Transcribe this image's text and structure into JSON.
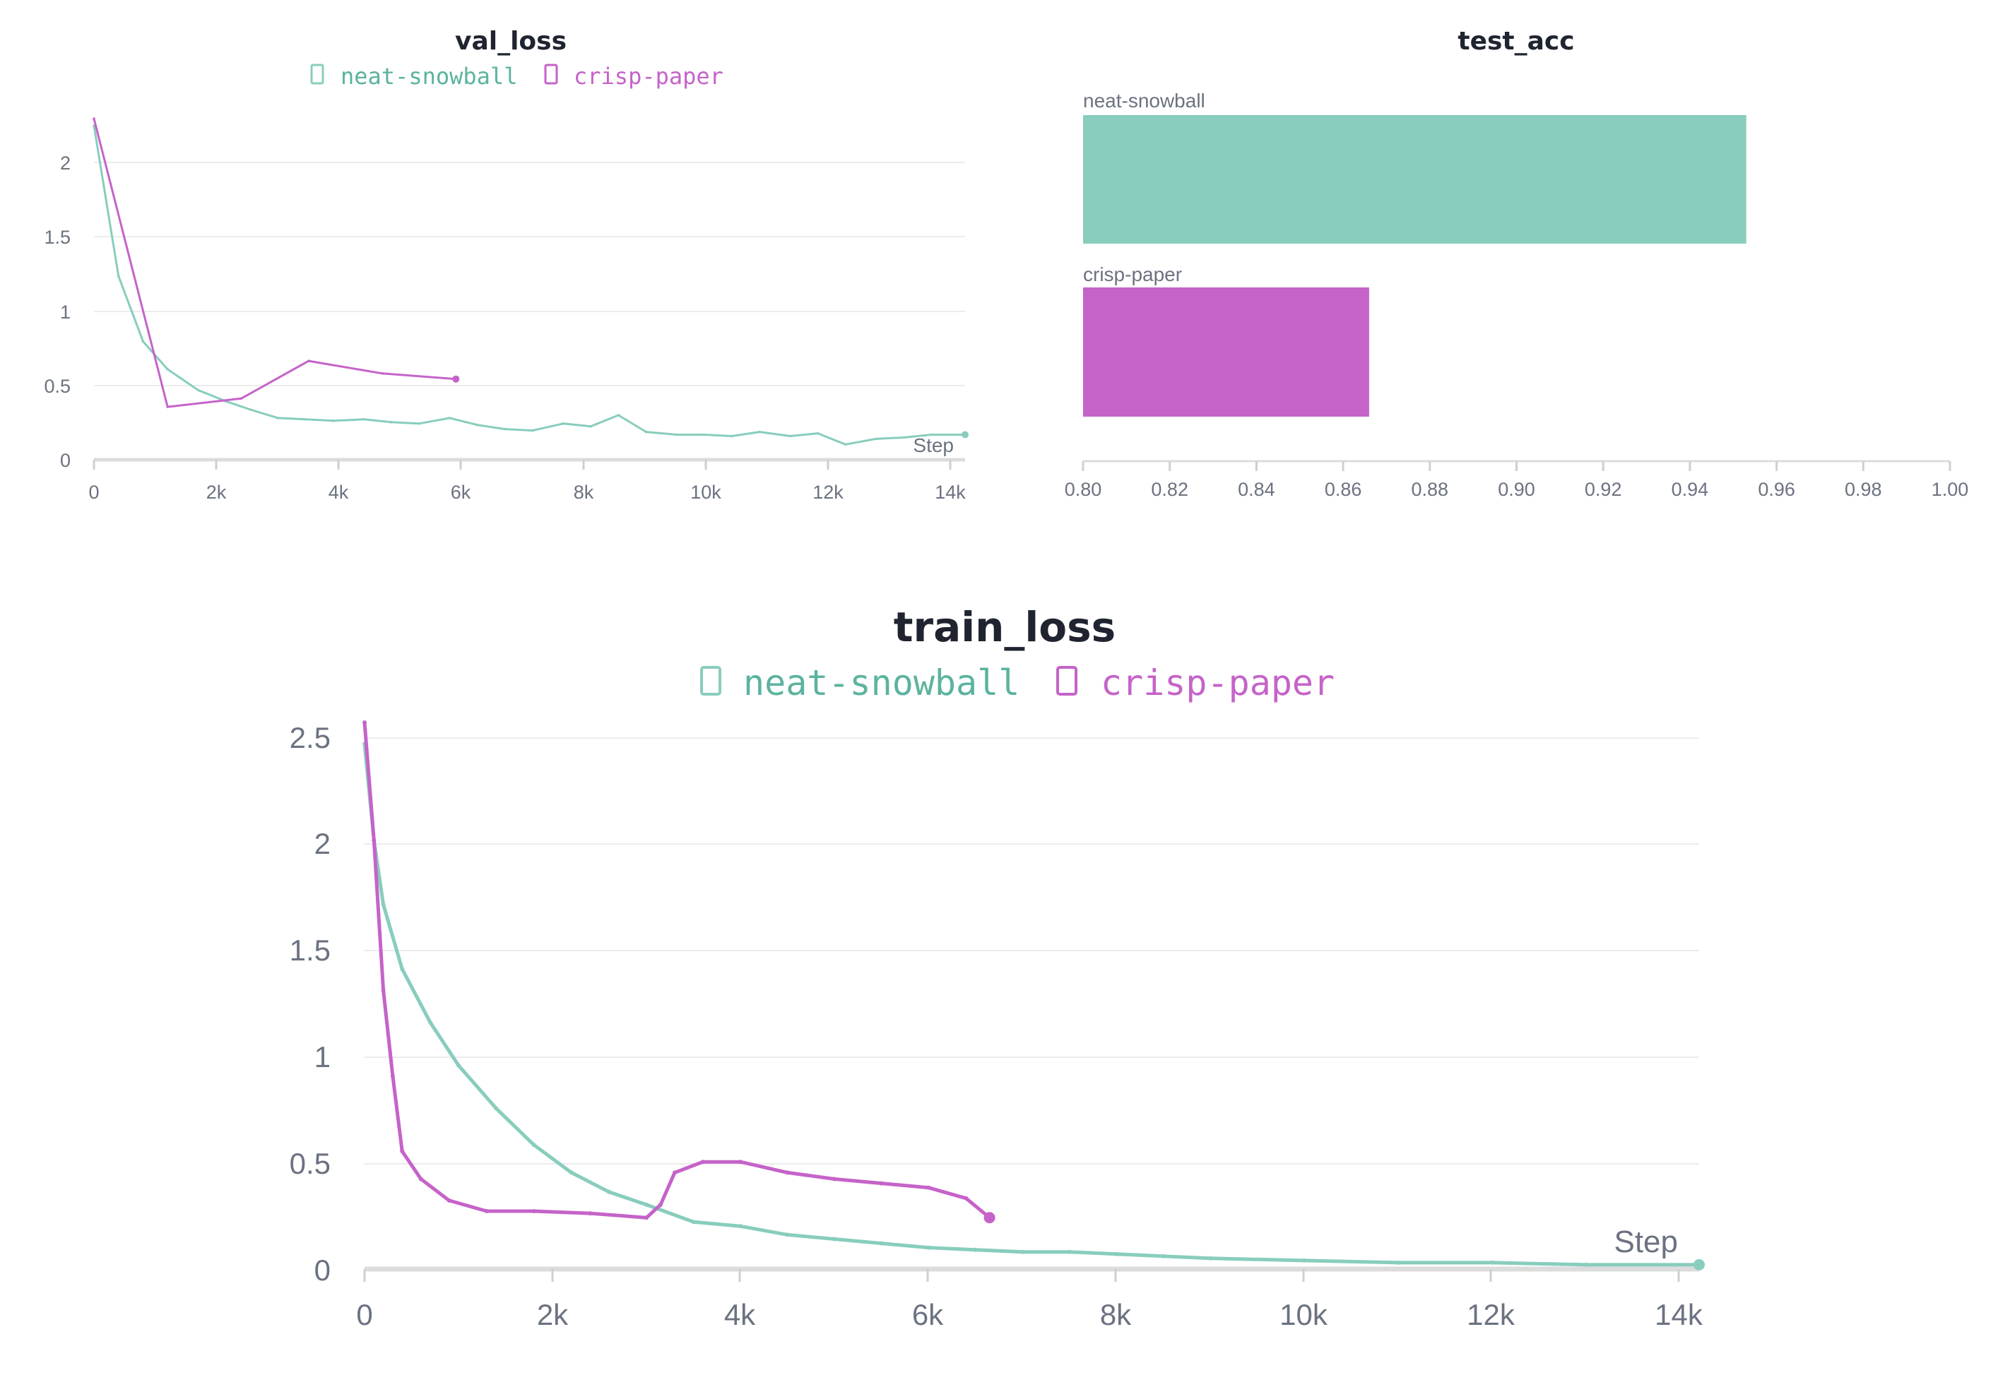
{
  "colors": {
    "neat": "#88cdbd",
    "neat_text": "#5bb39f",
    "crisp": "#c563c9",
    "crisp_text": "#c563c9",
    "grid": "#ececec",
    "tick": "#6b7280"
  },
  "chart_data": [
    {
      "id": "val_loss",
      "type": "line",
      "title": "val_loss",
      "xlabel": "Step",
      "xlim": [
        0,
        14200
      ],
      "ylim": [
        0,
        2.4
      ],
      "x_ticks": [
        "0",
        "2k",
        "4k",
        "6k",
        "8k",
        "10k",
        "12k",
        "14k"
      ],
      "y_ticks": [
        "0",
        "0.5",
        "1",
        "1.5",
        "2"
      ],
      "legend": [
        "neat-snowball",
        "crisp-paper"
      ],
      "legend_position": "top-center",
      "series": [
        {
          "name": "neat-snowball",
          "x": [
            0,
            400,
            800,
            1200,
            1700,
            2150,
            2550,
            3000,
            3450,
            3900,
            4400,
            4850,
            5300,
            5800,
            6250,
            6700,
            7150,
            7650,
            8100,
            8550,
            9000,
            9500,
            9950,
            10400,
            10850,
            11350,
            11800,
            12250,
            12750,
            13200,
            13650,
            14200
          ],
          "y": [
            2.4,
            1.32,
            0.85,
            0.65,
            0.5,
            0.42,
            0.36,
            0.3,
            0.29,
            0.28,
            0.29,
            0.27,
            0.26,
            0.3,
            0.25,
            0.22,
            0.21,
            0.26,
            0.24,
            0.32,
            0.2,
            0.18,
            0.18,
            0.17,
            0.2,
            0.17,
            0.19,
            0.11,
            0.15,
            0.16,
            0.18,
            0.18
          ]
        },
        {
          "name": "crisp-paper",
          "x": [
            0,
            1200,
            2400,
            3500,
            4700,
            5900
          ],
          "y": [
            2.45,
            0.38,
            0.44,
            0.71,
            0.62,
            0.58
          ]
        }
      ]
    },
    {
      "id": "test_acc",
      "type": "bar",
      "orientation": "horizontal",
      "title": "test_acc",
      "categories": [
        "neat-snowball",
        "crisp-paper"
      ],
      "values": [
        0.953,
        0.866
      ],
      "xlim": [
        0.8,
        1.0
      ],
      "x_ticks": [
        "0.80",
        "0.82",
        "0.84",
        "0.86",
        "0.88",
        "0.90",
        "0.92",
        "0.94",
        "0.96",
        "0.98",
        "1.00"
      ]
    },
    {
      "id": "train_loss",
      "type": "line",
      "title": "train_loss",
      "xlabel": "Step",
      "xlim": [
        0,
        14200
      ],
      "ylim": [
        0,
        2.55
      ],
      "x_ticks": [
        "0",
        "2k",
        "4k",
        "6k",
        "8k",
        "10k",
        "12k",
        "14k"
      ],
      "y_ticks": [
        "0",
        "0.5",
        "1",
        "1.5",
        "2",
        "2.5"
      ],
      "legend": [
        "neat-snowball",
        "crisp-paper"
      ],
      "legend_position": "top-center",
      "series": [
        {
          "name": "neat-snowball",
          "x": [
            0,
            100,
            200,
            400,
            700,
            1000,
            1400,
            1800,
            2200,
            2600,
            3000,
            3500,
            4000,
            4500,
            5000,
            5500,
            6000,
            6500,
            7000,
            7500,
            8000,
            8500,
            9000,
            10000,
            11000,
            12000,
            13000,
            14200
          ],
          "y": [
            2.45,
            2.0,
            1.7,
            1.4,
            1.15,
            0.95,
            0.75,
            0.58,
            0.45,
            0.36,
            0.3,
            0.22,
            0.2,
            0.16,
            0.14,
            0.12,
            0.1,
            0.09,
            0.08,
            0.08,
            0.07,
            0.06,
            0.05,
            0.04,
            0.03,
            0.03,
            0.02,
            0.02
          ]
        },
        {
          "name": "crisp-paper",
          "x": [
            0,
            100,
            200,
            300,
            400,
            600,
            900,
            1300,
            1800,
            2400,
            3000,
            3150,
            3300,
            3600,
            4000,
            4500,
            5000,
            5500,
            6000,
            6400,
            6650
          ],
          "y": [
            2.55,
            2.0,
            1.3,
            0.9,
            0.55,
            0.42,
            0.32,
            0.27,
            0.27,
            0.26,
            0.24,
            0.3,
            0.45,
            0.5,
            0.5,
            0.45,
            0.42,
            0.4,
            0.38,
            0.33,
            0.24
          ]
        }
      ]
    }
  ]
}
